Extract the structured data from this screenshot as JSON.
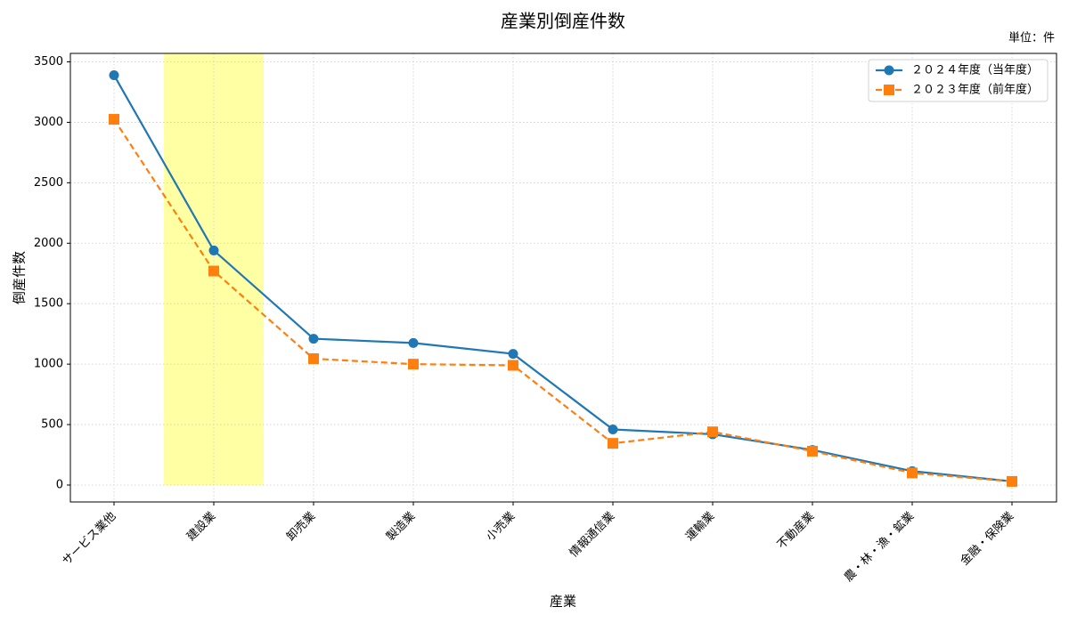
{
  "chart_data": {
    "type": "line",
    "title": "産業別倒産件数",
    "unit_note": "単位：件",
    "x_label": "産業",
    "y_label": "倒産件数",
    "categories": [
      "サービス業他",
      "建設業",
      "卸売業",
      "製造業",
      "小売業",
      "情報通信業",
      "運輸業",
      "不動産業",
      "農・林・漁・鉱業",
      "金融・保険業"
    ],
    "series": [
      {
        "name": "２０２４年度（当年度）",
        "color": "#1f77b4",
        "marker": "circle",
        "dash": "solid",
        "values": [
          3390,
          1940,
          1210,
          1175,
          1085,
          460,
          420,
          290,
          115,
          30
        ]
      },
      {
        "name": "２０２３年度（前年度）",
        "color": "#ff7f0e",
        "marker": "square",
        "dash": "dashed",
        "values": [
          3025,
          1770,
          1045,
          1000,
          990,
          345,
          440,
          280,
          100,
          30
        ]
      }
    ],
    "highlight_category": 1,
    "highlight_color": "#ffff99",
    "ylim": [
      -140,
      3570
    ],
    "yticks": [
      0,
      500,
      1000,
      1500,
      2000,
      2500,
      3000,
      3500
    ],
    "grid": true,
    "legend": "upper right"
  }
}
